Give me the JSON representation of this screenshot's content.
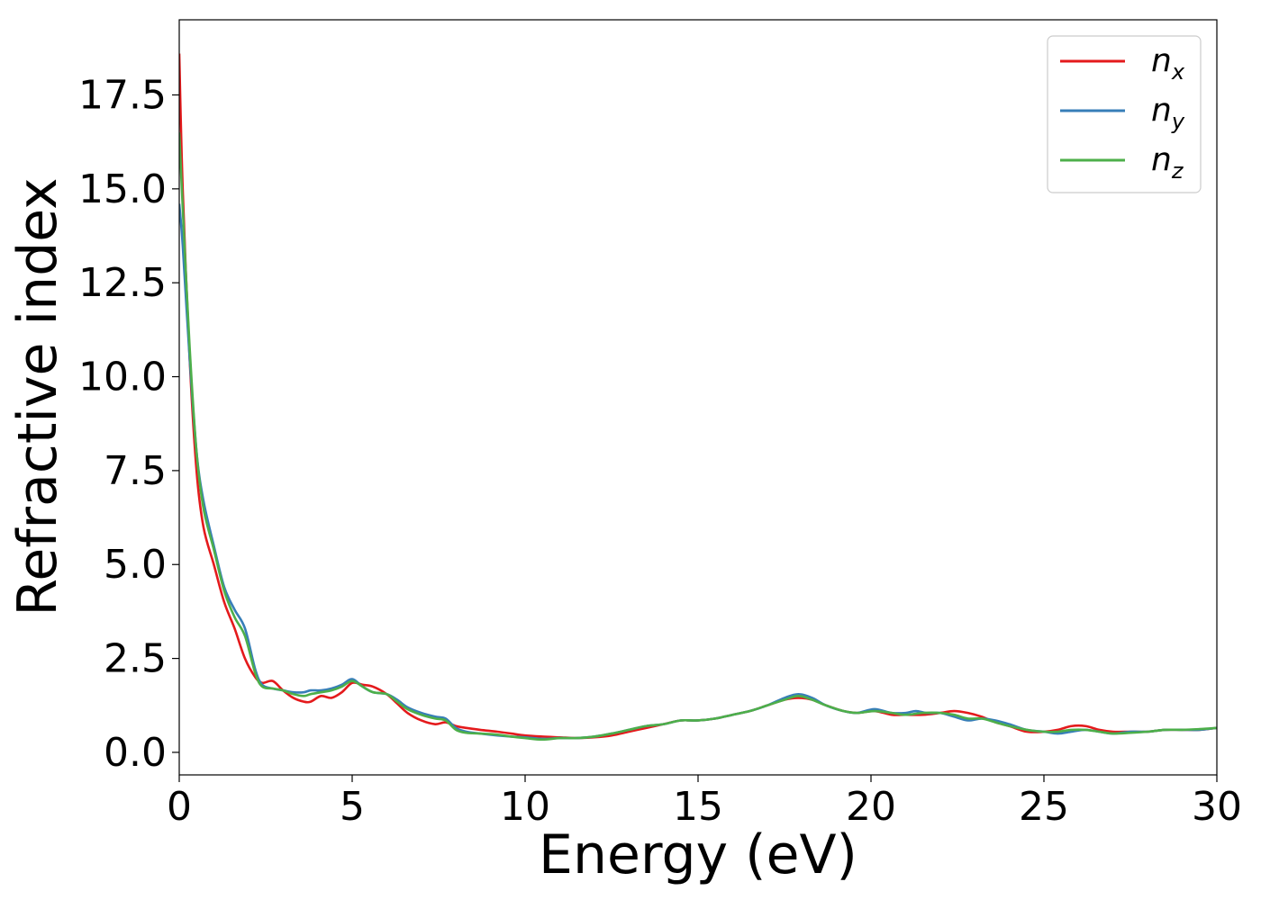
{
  "chart_data": {
    "type": "line",
    "xlabel": "Energy (eV)",
    "ylabel": "Refractive index",
    "xlim": [
      0,
      30
    ],
    "ylim": [
      -0.6,
      19.5
    ],
    "x_ticks": [
      0,
      5,
      10,
      15,
      20,
      25,
      30
    ],
    "x_tick_labels": [
      "0",
      "5",
      "10",
      "15",
      "20",
      "25",
      "30"
    ],
    "y_ticks": [
      0.0,
      2.5,
      5.0,
      7.5,
      10.0,
      12.5,
      15.0,
      17.5
    ],
    "y_tick_labels": [
      "0.0",
      "2.5",
      "5.0",
      "7.5",
      "10.0",
      "12.5",
      "15.0",
      "17.5"
    ],
    "grid": false,
    "legend_position": "top-right",
    "series": [
      {
        "label_base": "n",
        "label_sub": "x",
        "color": "#e41a1c",
        "points": [
          [
            0,
            18.6
          ],
          [
            0.1,
            15.0
          ],
          [
            0.3,
            10.5
          ],
          [
            0.5,
            7.5
          ],
          [
            0.7,
            6.0
          ],
          [
            1.0,
            5.0
          ],
          [
            1.3,
            4.0
          ],
          [
            1.6,
            3.3
          ],
          [
            1.9,
            2.5
          ],
          [
            2.2,
            2.0
          ],
          [
            2.4,
            1.85
          ],
          [
            2.7,
            1.9
          ],
          [
            3.0,
            1.65
          ],
          [
            3.3,
            1.45
          ],
          [
            3.6,
            1.35
          ],
          [
            3.8,
            1.35
          ],
          [
            4.1,
            1.5
          ],
          [
            4.4,
            1.45
          ],
          [
            4.7,
            1.6
          ],
          [
            5.0,
            1.85
          ],
          [
            5.3,
            1.8
          ],
          [
            5.6,
            1.75
          ],
          [
            6.0,
            1.55
          ],
          [
            6.3,
            1.3
          ],
          [
            6.6,
            1.05
          ],
          [
            7.0,
            0.85
          ],
          [
            7.4,
            0.75
          ],
          [
            7.7,
            0.8
          ],
          [
            8.0,
            0.7
          ],
          [
            8.3,
            0.65
          ],
          [
            8.7,
            0.6
          ],
          [
            9.2,
            0.55
          ],
          [
            9.6,
            0.5
          ],
          [
            10.0,
            0.45
          ],
          [
            10.5,
            0.42
          ],
          [
            11.0,
            0.4
          ],
          [
            11.5,
            0.38
          ],
          [
            12.0,
            0.4
          ],
          [
            12.5,
            0.45
          ],
          [
            13.0,
            0.55
          ],
          [
            13.5,
            0.65
          ],
          [
            14.0,
            0.75
          ],
          [
            14.5,
            0.85
          ],
          [
            15.0,
            0.85
          ],
          [
            15.5,
            0.9
          ],
          [
            16.0,
            1.0
          ],
          [
            16.5,
            1.1
          ],
          [
            17.0,
            1.25
          ],
          [
            17.5,
            1.4
          ],
          [
            17.9,
            1.45
          ],
          [
            18.3,
            1.4
          ],
          [
            18.7,
            1.25
          ],
          [
            19.2,
            1.1
          ],
          [
            19.6,
            1.05
          ],
          [
            20.1,
            1.1
          ],
          [
            20.6,
            1.0
          ],
          [
            21.0,
            1.0
          ],
          [
            21.5,
            1.0
          ],
          [
            22.0,
            1.05
          ],
          [
            22.4,
            1.1
          ],
          [
            22.8,
            1.05
          ],
          [
            23.2,
            0.95
          ],
          [
            23.6,
            0.8
          ],
          [
            24.0,
            0.7
          ],
          [
            24.5,
            0.55
          ],
          [
            25.0,
            0.55
          ],
          [
            25.4,
            0.6
          ],
          [
            25.8,
            0.7
          ],
          [
            26.2,
            0.7
          ],
          [
            26.6,
            0.6
          ],
          [
            27.0,
            0.55
          ],
          [
            27.5,
            0.55
          ],
          [
            28.0,
            0.55
          ],
          [
            28.5,
            0.6
          ],
          [
            29.0,
            0.6
          ],
          [
            29.5,
            0.6
          ],
          [
            30.0,
            0.65
          ]
        ]
      },
      {
        "label_base": "n",
        "label_sub": "y",
        "color": "#377eb8",
        "points": [
          [
            0,
            14.6
          ],
          [
            0.1,
            13.5
          ],
          [
            0.3,
            10.5
          ],
          [
            0.5,
            8.0
          ],
          [
            0.7,
            6.7
          ],
          [
            1.0,
            5.5
          ],
          [
            1.3,
            4.4
          ],
          [
            1.6,
            3.8
          ],
          [
            1.9,
            3.3
          ],
          [
            2.2,
            2.2
          ],
          [
            2.4,
            1.8
          ],
          [
            2.7,
            1.7
          ],
          [
            3.0,
            1.65
          ],
          [
            3.3,
            1.6
          ],
          [
            3.6,
            1.6
          ],
          [
            3.8,
            1.65
          ],
          [
            4.1,
            1.65
          ],
          [
            4.4,
            1.7
          ],
          [
            4.7,
            1.8
          ],
          [
            5.0,
            1.95
          ],
          [
            5.3,
            1.75
          ],
          [
            5.6,
            1.6
          ],
          [
            6.0,
            1.55
          ],
          [
            6.3,
            1.4
          ],
          [
            6.6,
            1.2
          ],
          [
            7.0,
            1.05
          ],
          [
            7.4,
            0.95
          ],
          [
            7.7,
            0.9
          ],
          [
            8.0,
            0.65
          ],
          [
            8.3,
            0.55
          ],
          [
            8.7,
            0.5
          ],
          [
            9.2,
            0.45
          ],
          [
            9.6,
            0.42
          ],
          [
            10.0,
            0.4
          ],
          [
            10.5,
            0.36
          ],
          [
            11.0,
            0.38
          ],
          [
            11.5,
            0.38
          ],
          [
            12.0,
            0.42
          ],
          [
            12.5,
            0.5
          ],
          [
            13.0,
            0.6
          ],
          [
            13.5,
            0.7
          ],
          [
            14.0,
            0.75
          ],
          [
            14.5,
            0.85
          ],
          [
            15.0,
            0.85
          ],
          [
            15.5,
            0.9
          ],
          [
            16.0,
            1.0
          ],
          [
            16.5,
            1.1
          ],
          [
            17.0,
            1.25
          ],
          [
            17.5,
            1.45
          ],
          [
            17.9,
            1.55
          ],
          [
            18.3,
            1.45
          ],
          [
            18.7,
            1.25
          ],
          [
            19.2,
            1.1
          ],
          [
            19.6,
            1.05
          ],
          [
            20.1,
            1.15
          ],
          [
            20.6,
            1.05
          ],
          [
            21.0,
            1.05
          ],
          [
            21.3,
            1.1
          ],
          [
            21.6,
            1.05
          ],
          [
            22.0,
            1.05
          ],
          [
            22.4,
            0.95
          ],
          [
            22.8,
            0.85
          ],
          [
            23.2,
            0.9
          ],
          [
            23.6,
            0.85
          ],
          [
            24.0,
            0.75
          ],
          [
            24.5,
            0.6
          ],
          [
            25.0,
            0.55
          ],
          [
            25.4,
            0.5
          ],
          [
            25.8,
            0.55
          ],
          [
            26.2,
            0.6
          ],
          [
            26.6,
            0.55
          ],
          [
            27.0,
            0.5
          ],
          [
            27.5,
            0.55
          ],
          [
            28.0,
            0.55
          ],
          [
            28.5,
            0.6
          ],
          [
            29.0,
            0.6
          ],
          [
            29.5,
            0.6
          ],
          [
            30.0,
            0.65
          ]
        ]
      },
      {
        "label_base": "n",
        "label_sub": "z",
        "color": "#4daf4a",
        "points": [
          [
            0,
            16.5
          ],
          [
            0.1,
            14.5
          ],
          [
            0.3,
            10.8
          ],
          [
            0.5,
            8.0
          ],
          [
            0.7,
            6.5
          ],
          [
            1.0,
            5.4
          ],
          [
            1.3,
            4.3
          ],
          [
            1.6,
            3.6
          ],
          [
            1.9,
            3.1
          ],
          [
            2.2,
            2.1
          ],
          [
            2.4,
            1.75
          ],
          [
            2.7,
            1.7
          ],
          [
            3.0,
            1.65
          ],
          [
            3.3,
            1.55
          ],
          [
            3.6,
            1.5
          ],
          [
            3.8,
            1.55
          ],
          [
            4.1,
            1.6
          ],
          [
            4.4,
            1.65
          ],
          [
            4.7,
            1.75
          ],
          [
            5.0,
            1.9
          ],
          [
            5.3,
            1.75
          ],
          [
            5.6,
            1.6
          ],
          [
            6.0,
            1.55
          ],
          [
            6.3,
            1.35
          ],
          [
            6.6,
            1.15
          ],
          [
            7.0,
            1.0
          ],
          [
            7.4,
            0.9
          ],
          [
            7.7,
            0.85
          ],
          [
            8.0,
            0.6
          ],
          [
            8.3,
            0.52
          ],
          [
            8.7,
            0.5
          ],
          [
            9.2,
            0.47
          ],
          [
            9.6,
            0.42
          ],
          [
            10.0,
            0.38
          ],
          [
            10.5,
            0.34
          ],
          [
            11.0,
            0.38
          ],
          [
            11.5,
            0.38
          ],
          [
            12.0,
            0.42
          ],
          [
            12.5,
            0.5
          ],
          [
            13.0,
            0.6
          ],
          [
            13.5,
            0.7
          ],
          [
            14.0,
            0.75
          ],
          [
            14.5,
            0.85
          ],
          [
            15.0,
            0.85
          ],
          [
            15.5,
            0.9
          ],
          [
            16.0,
            1.0
          ],
          [
            16.5,
            1.1
          ],
          [
            17.0,
            1.25
          ],
          [
            17.5,
            1.4
          ],
          [
            17.9,
            1.5
          ],
          [
            18.3,
            1.4
          ],
          [
            18.7,
            1.25
          ],
          [
            19.2,
            1.1
          ],
          [
            19.6,
            1.05
          ],
          [
            20.1,
            1.1
          ],
          [
            20.6,
            1.05
          ],
          [
            21.0,
            1.0
          ],
          [
            21.5,
            1.05
          ],
          [
            22.0,
            1.05
          ],
          [
            22.4,
            1.0
          ],
          [
            22.8,
            0.9
          ],
          [
            23.2,
            0.9
          ],
          [
            23.6,
            0.8
          ],
          [
            24.0,
            0.7
          ],
          [
            24.5,
            0.6
          ],
          [
            25.0,
            0.55
          ],
          [
            25.4,
            0.55
          ],
          [
            25.8,
            0.6
          ],
          [
            26.2,
            0.6
          ],
          [
            26.6,
            0.55
          ],
          [
            27.0,
            0.5
          ],
          [
            27.5,
            0.52
          ],
          [
            28.0,
            0.55
          ],
          [
            28.5,
            0.6
          ],
          [
            29.0,
            0.6
          ],
          [
            29.5,
            0.62
          ],
          [
            30.0,
            0.65
          ]
        ]
      }
    ]
  }
}
